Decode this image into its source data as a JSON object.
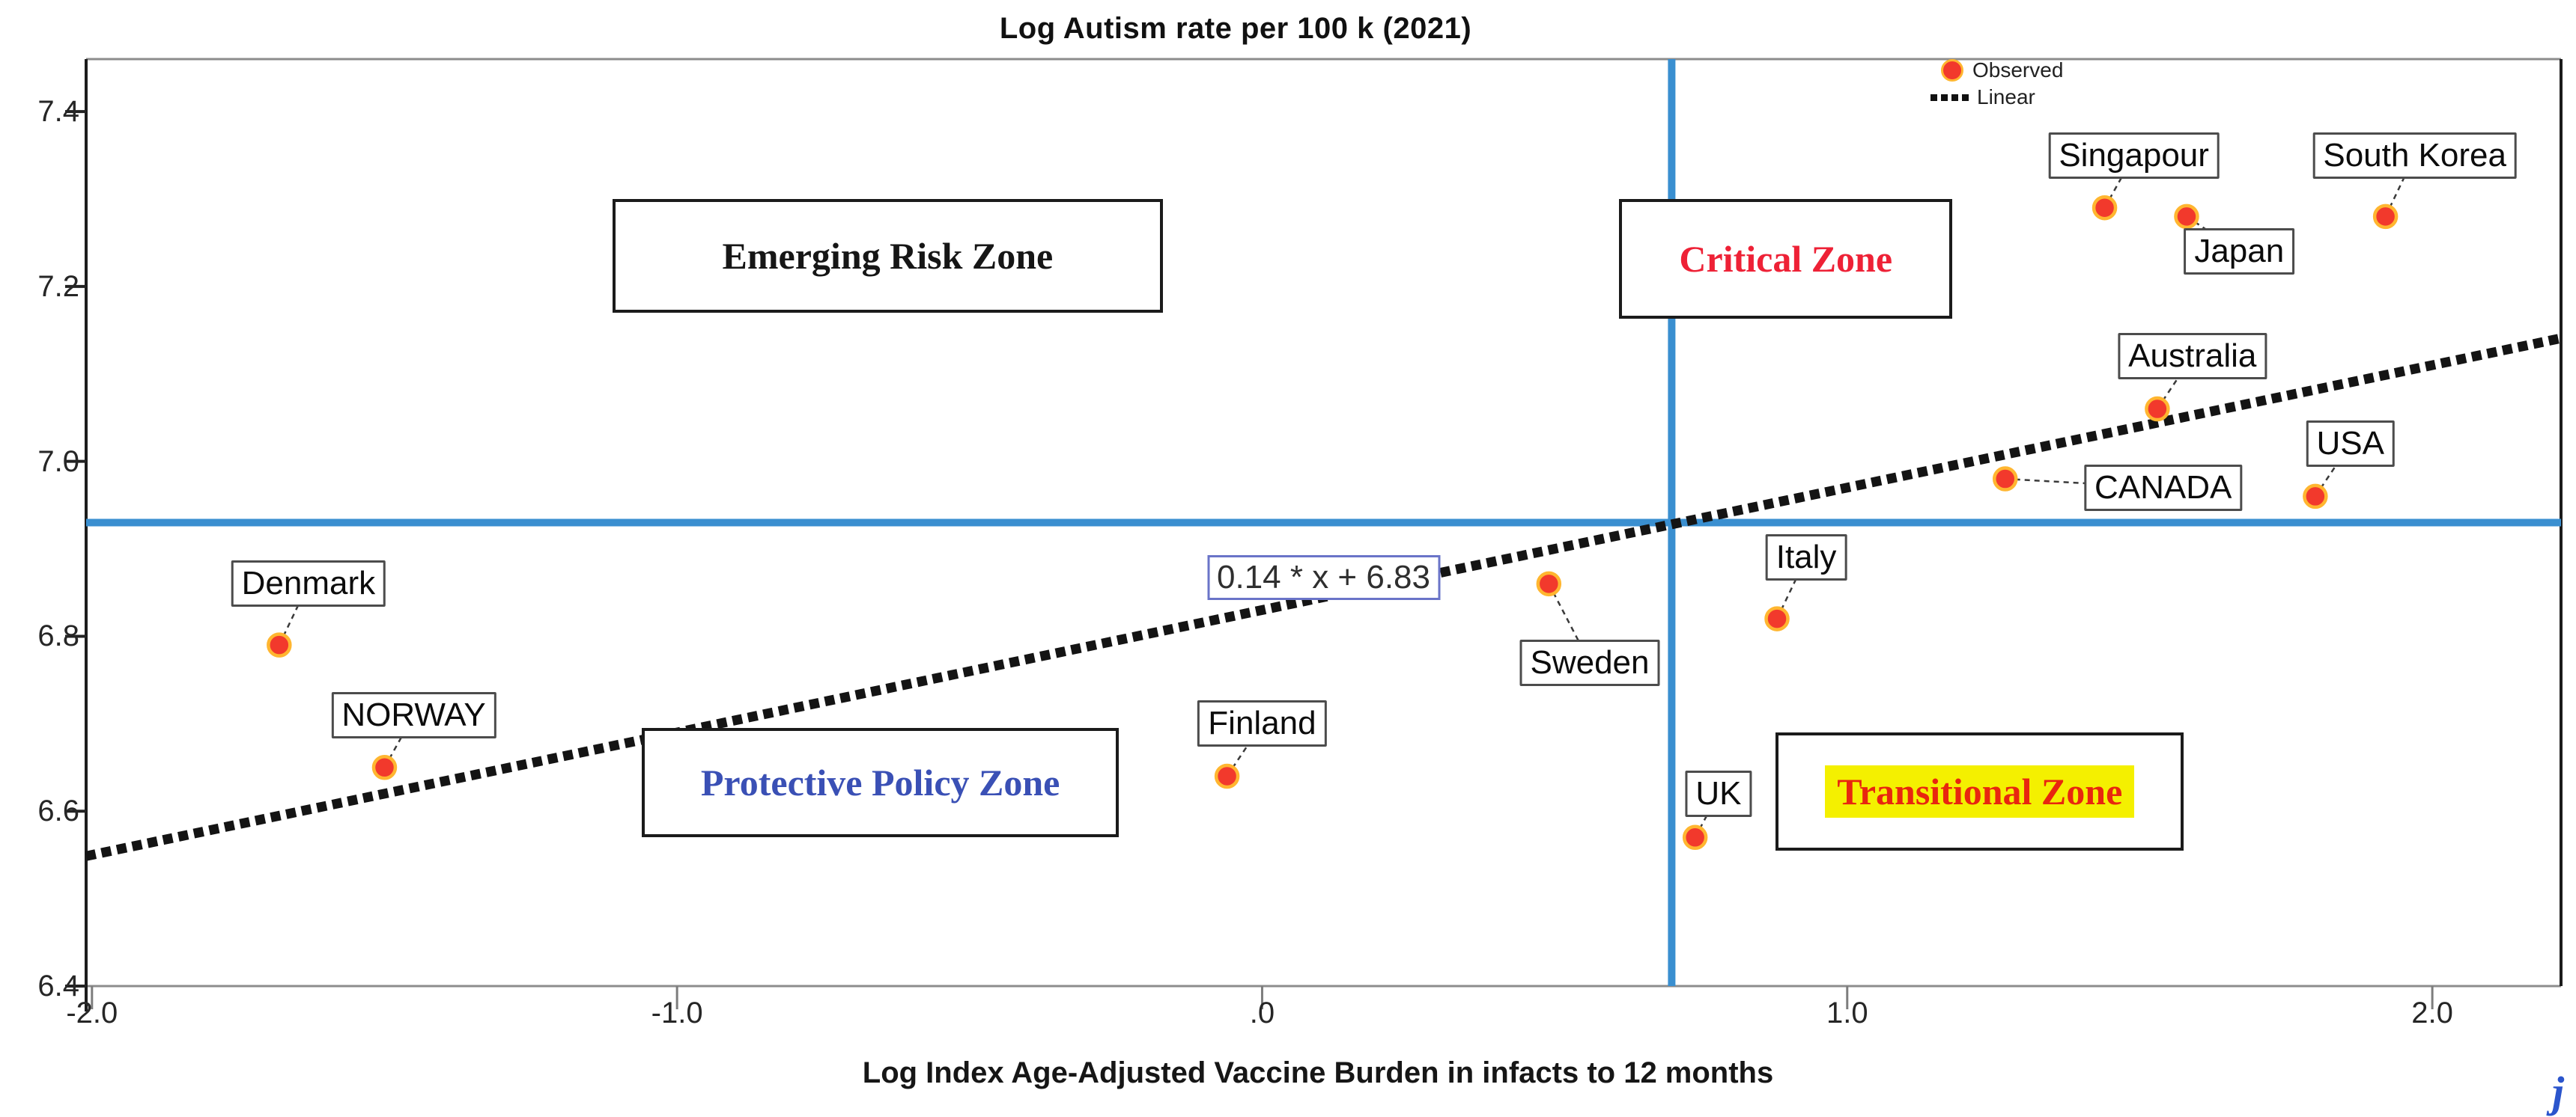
{
  "title": "Log Autism rate per 100 k (2021)",
  "x_axis": {
    "label": "Log Index Age-Adjusted Vaccine Burden in infacts to 12 months",
    "ticks": [
      {
        "t": "-2.0",
        "v": -2.0
      },
      {
        "t": "-1.0",
        "v": -1.0
      },
      {
        "t": ".0",
        "v": 0.0
      },
      {
        "t": "1.0",
        "v": 1.0
      },
      {
        "t": "2.0",
        "v": 2.0
      }
    ]
  },
  "y_axis": {
    "ticks": [
      {
        "t": "7.4",
        "v": 7.4
      },
      {
        "t": "7.2",
        "v": 7.2
      },
      {
        "t": "7.0",
        "v": 7.0
      },
      {
        "t": "6.8",
        "v": 6.8
      },
      {
        "t": "6.6",
        "v": 6.6
      },
      {
        "t": "6.4",
        "v": 6.4
      }
    ]
  },
  "legend": {
    "items": [
      {
        "label": "Observed",
        "marker": "red-dot"
      },
      {
        "label": "Linear",
        "marker": "black-dashed-line"
      }
    ]
  },
  "colors": {
    "reference_line": "#3a8fd0",
    "trend_line": "#141414",
    "point_fill": "#f2392c",
    "point_ring": "#ffb630",
    "frame_gray": "#8c8c8c",
    "frame_black": "#1c1c1c",
    "connector": "#3a3a3a"
  },
  "stray_mark": {
    "text": "j",
    "color": "#2b55cc"
  },
  "chart_data": {
    "type": "scatter",
    "title": "Log Autism rate per 100 k (2021)",
    "xlabel": "Log Index Age-Adjusted Vaccine Burden in infacts to 12 months",
    "ylabel": "",
    "xlim": [
      -2.01,
      2.22
    ],
    "ylim": [
      6.4,
      7.46
    ],
    "grid": false,
    "legend_position": "top-right-inside",
    "series": [
      {
        "name": "Observed",
        "type": "scatter",
        "points": [
          {
            "label": "Denmark",
            "x": -1.68,
            "y": 6.79,
            "label_at": [
              -1.63,
              6.86
            ]
          },
          {
            "label": "NORWAY",
            "x": -1.5,
            "y": 6.65,
            "label_at": [
              -1.45,
              6.71
            ]
          },
          {
            "label": "Finland",
            "x": -0.06,
            "y": 6.64,
            "label_at": [
              0.0,
              6.7
            ]
          },
          {
            "label": "Sweden",
            "x": 0.49,
            "y": 6.86,
            "label_at": [
              0.56,
              6.77
            ]
          },
          {
            "label": "UK",
            "x": 0.74,
            "y": 6.57,
            "label_at": [
              0.78,
              6.62
            ]
          },
          {
            "label": "Italy",
            "x": 0.88,
            "y": 6.82,
            "label_at": [
              0.93,
              6.89
            ]
          },
          {
            "label": "CANADA",
            "x": 1.27,
            "y": 6.98,
            "label_at": [
              1.54,
              6.97
            ]
          },
          {
            "label": "Australia",
            "x": 1.53,
            "y": 7.06,
            "label_at": [
              1.59,
              7.12
            ]
          },
          {
            "label": "USA",
            "x": 1.8,
            "y": 6.96,
            "label_at": [
              1.86,
              7.02
            ]
          },
          {
            "label": "Singapour",
            "x": 1.44,
            "y": 7.29,
            "label_at": [
              1.49,
              7.35
            ]
          },
          {
            "label": "Japan",
            "x": 1.58,
            "y": 7.28,
            "label_at": [
              1.67,
              7.24
            ]
          },
          {
            "label": "South Korea",
            "x": 1.92,
            "y": 7.28,
            "label_at": [
              1.97,
              7.35
            ]
          }
        ]
      }
    ],
    "trend_line": {
      "name": "Linear",
      "slope": 0.14,
      "intercept": 6.83,
      "label": "0.14 * x + 6.83",
      "label_at": [
        0.105,
        6.867
      ]
    },
    "reference_lines": {
      "vertical_x": 0.7,
      "horizontal_y": 6.93
    },
    "zone_annotations": [
      {
        "id": "emerging",
        "label": "Emerging Risk Zone",
        "text_color": "#161616",
        "highlight": "",
        "x_range": [
          -1.11,
          -0.17
        ],
        "y_range": [
          7.17,
          7.3
        ]
      },
      {
        "id": "critical",
        "label": "Critical Zone",
        "text_color": "#ee2136",
        "highlight": "",
        "x_range": [
          0.61,
          1.18
        ],
        "y_range": [
          7.163,
          7.3
        ]
      },
      {
        "id": "protective",
        "label": "Protective Policy Zone",
        "text_color": "#3a50b5",
        "highlight": "",
        "x_range": [
          -1.06,
          -0.245
        ],
        "y_range": [
          6.57,
          6.695
        ]
      },
      {
        "id": "transitional",
        "label": "Transitional Zone",
        "text_color": "#e8260f",
        "highlight": "#f4f000",
        "x_range": [
          0.878,
          1.575
        ],
        "y_range": [
          6.555,
          6.69
        ]
      }
    ]
  }
}
